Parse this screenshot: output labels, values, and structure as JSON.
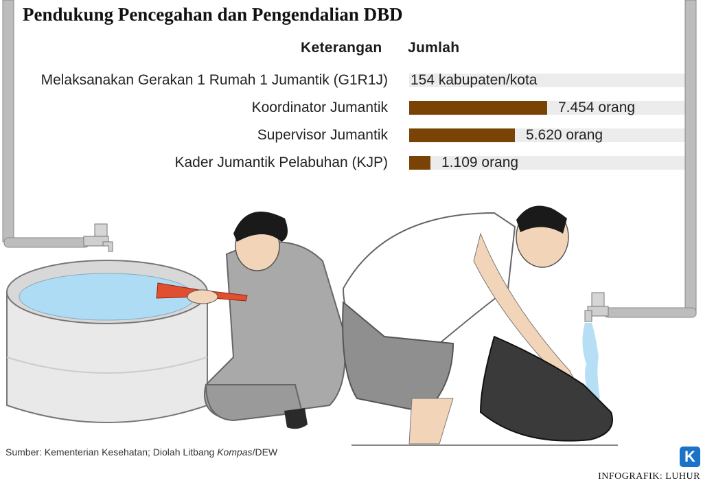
{
  "title": "Pendukung Pencegahan dan Pengendalian DBD",
  "table": {
    "col_label": "Keterangan",
    "col_value": "Jumlah"
  },
  "chart_data": {
    "type": "bar",
    "orientation": "horizontal",
    "categories": [
      "Melaksanakan Gerakan 1 Rumah 1 Jumantik (G1R1J)",
      "Koordinator Jumantik",
      "Supervisor Jumantik",
      "Kader Jumantik Pelabuhan (KJP)"
    ],
    "value_labels": [
      "154 kabupaten/kota",
      "7.454 orang",
      "5.620 orang",
      "1.109 orang"
    ],
    "values": [
      154,
      7454,
      5620,
      1109
    ],
    "units": [
      "kabupaten/kota",
      "orang",
      "orang",
      "orang"
    ],
    "bar_fraction": [
      0,
      0.5,
      0.383,
      0.077
    ],
    "bar_color": "#7a4306",
    "track_color": "#ececec"
  },
  "footer": {
    "source_prefix": "Sumber: Kementerian Kesehatan; Diolah Litbang ",
    "source_italic": "Kompas",
    "source_suffix": "/DEW",
    "credit": "INFOGRAFIK: LUHUR",
    "logo": "K"
  },
  "illustration": {
    "icons": [
      "water-tank-icon",
      "faucet-icon",
      "person-with-flashlight-icon",
      "person-with-bucket-icon"
    ],
    "pipe_color": "#b8b8b8",
    "water_color": "#aedcf5"
  }
}
